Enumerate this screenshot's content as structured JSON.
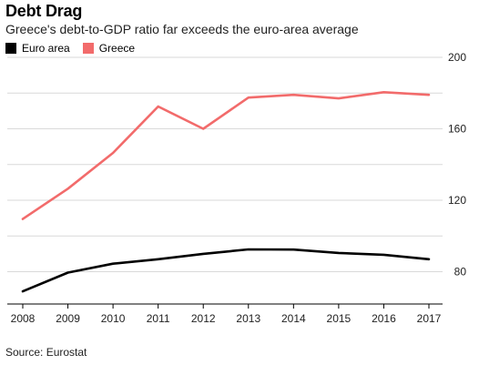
{
  "header": {
    "title": "Debt Drag",
    "subtitle": "Greece's debt-to-GDP ratio far exceeds the euro-area average"
  },
  "footer": {
    "source": "Source: Eurostat"
  },
  "chart_data": {
    "type": "line",
    "title": "Debt Drag",
    "subtitle": "Greece's debt-to-GDP ratio far exceeds the euro-area average",
    "xlabel": "",
    "ylabel": "",
    "x": [
      2008,
      2009,
      2010,
      2011,
      2012,
      2013,
      2014,
      2015,
      2016,
      2017
    ],
    "ylim": [
      65,
      200
    ],
    "yticks": [
      80,
      120,
      160,
      200
    ],
    "grid": true,
    "legend_position": "top-left",
    "series": [
      {
        "name": "Euro area",
        "color": "#000000",
        "values": [
          69,
          79.5,
          84.5,
          87,
          90,
          92.5,
          92.4,
          90.5,
          89.5,
          87
        ]
      },
      {
        "name": "Greece",
        "color": "#f26b6b",
        "values": [
          109.5,
          126.5,
          146.5,
          172.5,
          160,
          177.5,
          179,
          177,
          180.5,
          179
        ]
      }
    ]
  }
}
